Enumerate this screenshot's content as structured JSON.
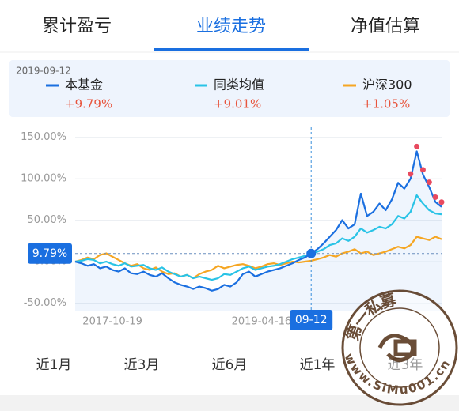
{
  "tabs": [
    "累计盈亏",
    "业绩走势",
    "净值估算"
  ],
  "active_tab": "业绩走势",
  "chart_data": {
    "type": "line",
    "tooltip": {
      "date": "2019-09-12",
      "labels": [
        "+9.79%",
        "+9.01%",
        "+1.05%"
      ]
    },
    "crosshair": {
      "value": 9.79,
      "label": "9.79%"
    },
    "categories": [
      null,
      null,
      null,
      null,
      null,
      null,
      "2017-10-19",
      null,
      null,
      null,
      null,
      null,
      null,
      null,
      null,
      null,
      null,
      null,
      null,
      null,
      null,
      null,
      null,
      null,
      null,
      null,
      null,
      null,
      null,
      null,
      "2019-04-16",
      null,
      null,
      null,
      null,
      null,
      null,
      null,
      "09-12",
      null,
      null,
      null,
      null,
      null,
      null,
      null,
      null,
      null,
      null,
      null,
      null,
      null,
      null,
      null,
      null,
      null,
      null,
      null,
      null,
      null
    ],
    "series": [
      {
        "name": "本基金",
        "color": "#1a6fe0",
        "values": [
          0,
          -2,
          -5,
          -3,
          -8,
          -6,
          -10,
          -12,
          -8,
          -14,
          -15,
          -12,
          -16,
          -18,
          -14,
          -20,
          -25,
          -28,
          -30,
          -33,
          -30,
          -32,
          -35,
          -33,
          -28,
          -30,
          -25,
          -15,
          -12,
          -18,
          -15,
          -12,
          -10,
          -8,
          -5,
          -2,
          2,
          5,
          9.79,
          15,
          22,
          30,
          38,
          50,
          40,
          45,
          82,
          55,
          60,
          70,
          62,
          75,
          95,
          88,
          100,
          133,
          105,
          90,
          72,
          66
        ]
      },
      {
        "name": "同类均值",
        "color": "#29c3e6",
        "values": [
          0,
          1,
          3,
          2,
          -2,
          0,
          -3,
          -5,
          -2,
          -6,
          -5,
          -4,
          -8,
          -10,
          -7,
          -12,
          -15,
          -18,
          -16,
          -20,
          -18,
          -20,
          -22,
          -20,
          -15,
          -16,
          -12,
          -8,
          -6,
          -10,
          -8,
          -6,
          -5,
          -3,
          0,
          3,
          5,
          7,
          9.01,
          12,
          15,
          20,
          22,
          28,
          25,
          30,
          40,
          35,
          38,
          42,
          40,
          45,
          55,
          52,
          60,
          80,
          70,
          62,
          58,
          57
        ]
      },
      {
        "name": "沪深300",
        "color": "#f5a623",
        "values": [
          0,
          2,
          5,
          3,
          8,
          10,
          6,
          2,
          -2,
          -5,
          -3,
          -8,
          -10,
          -7,
          -12,
          -15,
          -14,
          -18,
          -16,
          -20,
          -15,
          -12,
          -10,
          -5,
          -8,
          -6,
          -4,
          -3,
          -5,
          -8,
          -6,
          -3,
          -2,
          -4,
          -2,
          0,
          -1,
          0,
          1.05,
          3,
          5,
          8,
          6,
          10,
          12,
          15,
          10,
          12,
          8,
          10,
          12,
          15,
          18,
          16,
          20,
          30,
          28,
          26,
          30,
          27
        ]
      }
    ],
    "signals": {
      "color": "#e84a5f",
      "series": 0,
      "indices": [
        54,
        55,
        56,
        57,
        58,
        59
      ]
    },
    "ylim": [
      -60,
      162
    ],
    "yticks": [
      {
        "value": -50,
        "label": "-50.00%"
      },
      {
        "value": 0,
        "label": "0.00%"
      },
      {
        "value": 50,
        "label": "50.00%"
      },
      {
        "value": 100,
        "label": "100.00%"
      },
      {
        "value": 150,
        "label": "150.00%"
      }
    ],
    "grid": true
  },
  "periods": [
    "近1月",
    "近3月",
    "近6月",
    "近1年",
    "近3年"
  ],
  "watermark": {
    "title": "第一私募",
    "url": "www.SiMu001.cn"
  }
}
